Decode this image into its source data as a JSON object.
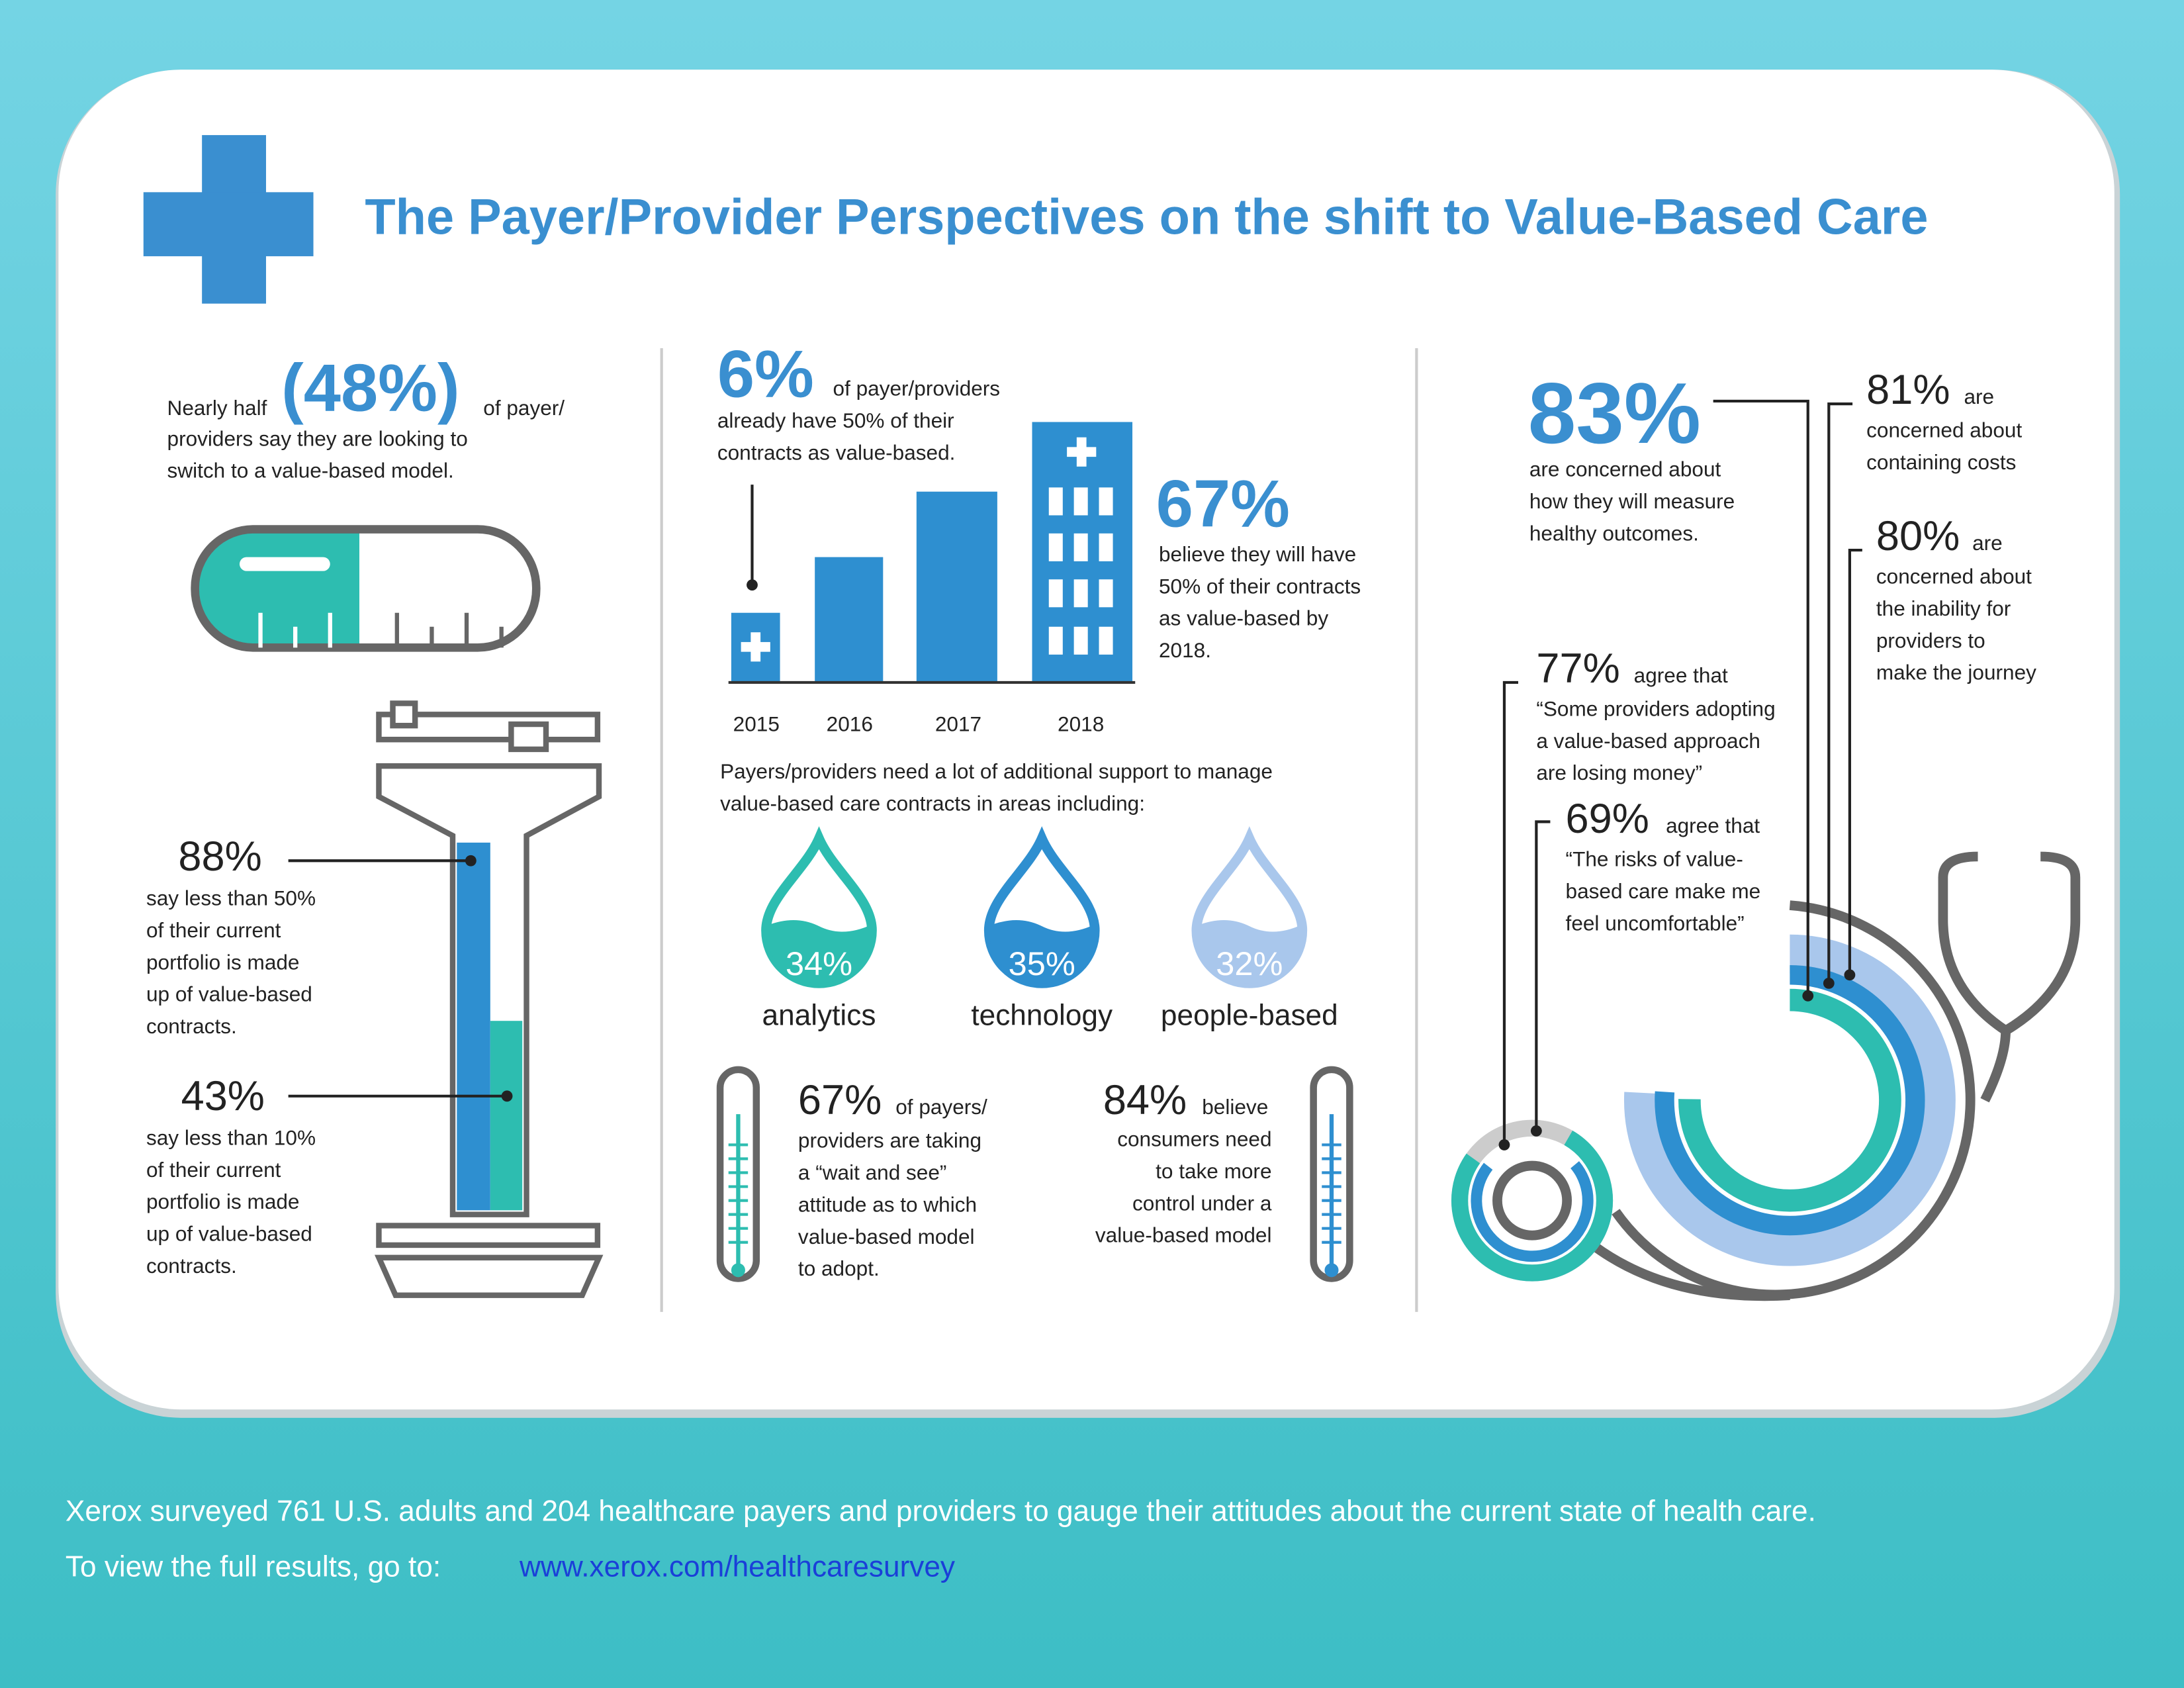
{
  "title": "The Payer/Provider Perspectives on the shift to Value-Based Care",
  "left": {
    "lead": "Nearly half",
    "stat": "(48%)",
    "trail": "of payer/",
    "lines": [
      "providers say they are looking to",
      "switch to a value-based model."
    ],
    "items": [
      {
        "value": "88%",
        "lines": [
          "say less than 50%",
          "of their current",
          "portfolio is made",
          "up of value-based",
          "contracts."
        ]
      },
      {
        "value": "43%",
        "lines": [
          "say less than 10%",
          "of their current",
          "portfolio is made",
          "up of value-based",
          "contracts."
        ]
      }
    ]
  },
  "middle": {
    "now": {
      "value": "6%",
      "text": "of payer/providers",
      "lines": [
        "already have 50% of their",
        "contracts as value-based."
      ]
    },
    "future": {
      "value": "67%",
      "lines": [
        "believe they will have",
        "50% of their contracts",
        "as value-based by",
        "2018."
      ]
    },
    "years": [
      "2015",
      "2016",
      "2017",
      "2018"
    ],
    "support": [
      "Payers/providers need a lot of additional support to manage",
      "value-based care contracts in areas including:"
    ],
    "areas": [
      {
        "value": "34%",
        "label": "analytics"
      },
      {
        "value": "35%",
        "label": "technology"
      },
      {
        "value": "32%",
        "label": "people-based"
      }
    ],
    "wait": {
      "value": "67%",
      "text": "of payers/",
      "lines": [
        "providers are taking",
        "a “wait and see”",
        "attitude as to which",
        "value-based model",
        "to adopt."
      ]
    },
    "consumers": {
      "value": "84%",
      "text": "believe",
      "lines": [
        "consumers need",
        "to take more",
        "control under a",
        "value-based model"
      ]
    }
  },
  "right": {
    "measure": {
      "value": "83%",
      "lines": [
        "are concerned about",
        "how they will measure",
        "healthy outcomes."
      ]
    },
    "costs": {
      "value": "81%",
      "text": "are",
      "lines": [
        "concerned about",
        "containing costs"
      ]
    },
    "journey": {
      "value": "80%",
      "text": "are",
      "lines": [
        "concerned about",
        "the inability for",
        "providers to",
        "make the journey"
      ]
    },
    "money": {
      "value": "77%",
      "text": "agree that",
      "lines": [
        "“Some providers adopting",
        "a value-based approach",
        "are losing money”"
      ]
    },
    "risk": {
      "value": "69%",
      "text": "agree that",
      "lines": [
        "“The risks of value-",
        "based care make me",
        "feel uncomfortable”"
      ]
    }
  },
  "footer": {
    "line1": "Xerox surveyed 761 U.S. adults and 204 healthcare payers and providers to gauge their attitudes about the current state of health care.",
    "line2": "To view the full results, go to:",
    "link": "www.xerox.com/healthcaresurvey"
  }
}
